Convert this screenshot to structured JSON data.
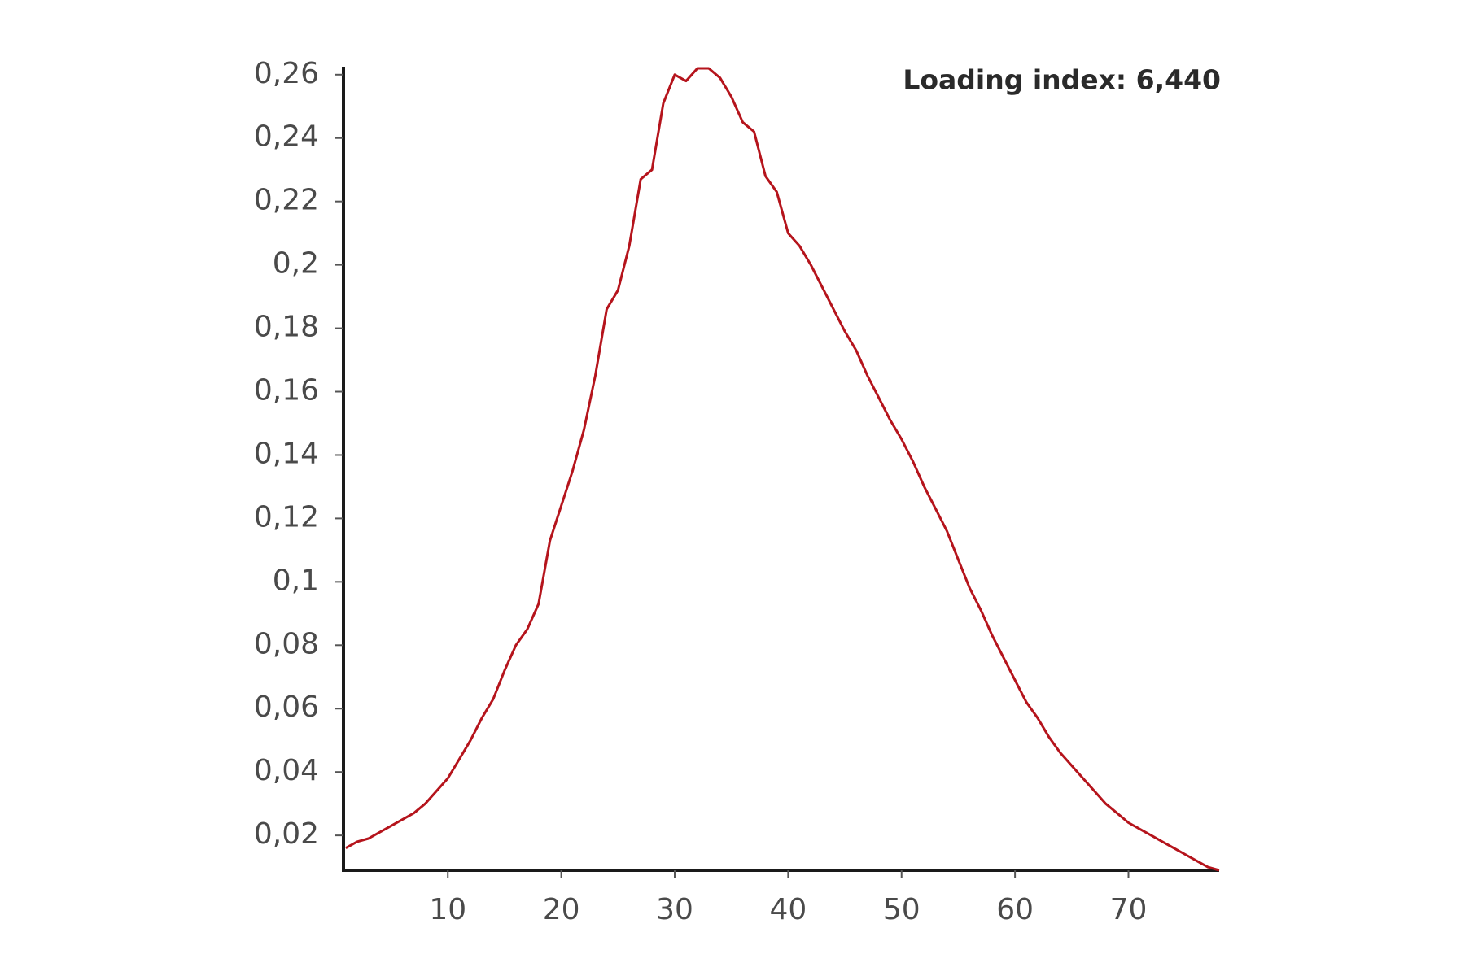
{
  "chart_data": {
    "type": "line",
    "annotation": "Loading index: 6,440",
    "x": [
      1,
      2,
      3,
      4,
      5,
      6,
      7,
      8,
      9,
      10,
      11,
      12,
      13,
      14,
      15,
      16,
      17,
      18,
      19,
      20,
      21,
      22,
      23,
      24,
      25,
      26,
      27,
      28,
      29,
      30,
      31,
      32,
      33,
      34,
      35,
      36,
      37,
      38,
      39,
      40,
      41,
      42,
      43,
      44,
      45,
      46,
      47,
      48,
      49,
      50,
      51,
      52,
      53,
      54,
      55,
      56,
      57,
      58,
      59,
      60,
      61,
      62,
      63,
      64,
      65,
      66,
      67,
      68,
      69,
      70,
      71,
      72,
      73,
      74,
      75,
      76,
      77,
      78
    ],
    "values": [
      0.016,
      0.018,
      0.019,
      0.021,
      0.023,
      0.025,
      0.027,
      0.03,
      0.034,
      0.038,
      0.044,
      0.05,
      0.057,
      0.063,
      0.072,
      0.08,
      0.085,
      0.093,
      0.113,
      0.124,
      0.135,
      0.148,
      0.165,
      0.186,
      0.192,
      0.206,
      0.227,
      0.23,
      0.251,
      0.26,
      0.258,
      0.262,
      0.262,
      0.259,
      0.253,
      0.245,
      0.242,
      0.228,
      0.223,
      0.21,
      0.206,
      0.2,
      0.193,
      0.186,
      0.179,
      0.173,
      0.165,
      0.158,
      0.151,
      0.145,
      0.138,
      0.13,
      0.123,
      0.116,
      0.107,
      0.098,
      0.091,
      0.083,
      0.076,
      0.069,
      0.062,
      0.057,
      0.051,
      0.046,
      0.042,
      0.038,
      0.034,
      0.03,
      0.027,
      0.024,
      0.022,
      0.02,
      0.018,
      0.016,
      0.014,
      0.012,
      0.01,
      0.009
    ],
    "color": "#b5141c",
    "xlim": [
      0.8,
      78
    ],
    "ylim": [
      0.009,
      0.262
    ],
    "xticks": [
      10,
      20,
      30,
      40,
      50,
      60,
      70
    ],
    "yticks": [
      {
        "value": 0.02,
        "label": "0,02"
      },
      {
        "value": 0.04,
        "label": "0,04"
      },
      {
        "value": 0.06,
        "label": "0,06"
      },
      {
        "value": 0.08,
        "label": "0,08"
      },
      {
        "value": 0.1,
        "label": "0,1"
      },
      {
        "value": 0.12,
        "label": "0,12"
      },
      {
        "value": 0.14,
        "label": "0,14"
      },
      {
        "value": 0.16,
        "label": "0,16"
      },
      {
        "value": 0.18,
        "label": "0,18"
      },
      {
        "value": 0.2,
        "label": "0,2"
      },
      {
        "value": 0.22,
        "label": "0,22"
      },
      {
        "value": 0.24,
        "label": "0,24"
      },
      {
        "value": 0.26,
        "label": "0,26"
      }
    ],
    "grid": false
  }
}
